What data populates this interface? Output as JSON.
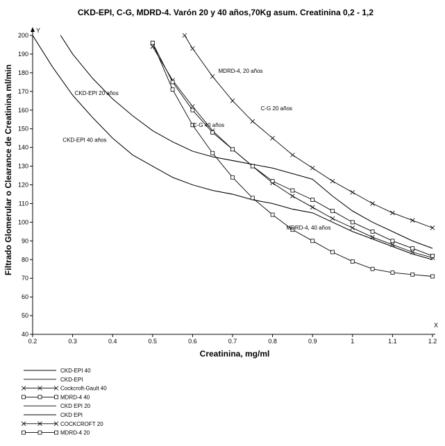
{
  "chart_data": {
    "type": "line",
    "title": "CKD-EPI, C-G, MDRD-4.  Varón 20 y 40 años,70Kg asum. Creatinina 0,2 - 1,2",
    "xlabel": "Creatinina, mg/ml",
    "ylabel": "Filtrado Glomerular o Clearance de Creatinina ml/min",
    "x_axis_letter": "X",
    "y_axis_letter": "Y",
    "xlim": [
      0.2,
      1.2
    ],
    "ylim": [
      40,
      200
    ],
    "x_ticks": [
      "0.2",
      "0.3",
      "0.4",
      "0.5",
      "0.6",
      "0.7",
      "0.8",
      "0.9",
      "1",
      "1.1",
      "1.2"
    ],
    "y_ticks": [
      "40",
      "50",
      "60",
      "70",
      "80",
      "90",
      "100",
      "110",
      "120",
      "130",
      "140",
      "150",
      "160",
      "170",
      "180",
      "190",
      "200"
    ],
    "grid": false,
    "legend_position": "bottom-left",
    "series": [
      {
        "name": "CKD-EPI 40",
        "marker": "none",
        "color": "#000000",
        "x": [
          0.2,
          0.25,
          0.3,
          0.35,
          0.4,
          0.45,
          0.5,
          0.55,
          0.6,
          0.65,
          0.7,
          0.75,
          0.8,
          0.85,
          0.9,
          0.95,
          1.0,
          1.05,
          1.1,
          1.15,
          1.2
        ],
        "y": [
          200,
          183,
          168,
          156,
          145,
          136,
          130,
          124,
          120,
          117,
          115,
          112,
          110,
          107,
          105,
          100,
          95,
          91,
          87,
          83,
          80
        ]
      },
      {
        "name": "CKD-EPI",
        "marker": "none",
        "color": "#000000",
        "x": [
          0.2,
          0.25,
          0.3,
          0.35,
          0.4,
          0.45,
          0.5,
          0.55,
          0.6,
          0.65,
          0.7,
          0.75,
          0.8,
          0.85,
          0.9,
          0.95,
          1.0,
          1.05,
          1.1,
          1.15,
          1.2
        ],
        "y": [
          200,
          183,
          168,
          156,
          145,
          136,
          130,
          124,
          120,
          117,
          115,
          112,
          110,
          107,
          105,
          100,
          95,
          91,
          87,
          83,
          80
        ]
      },
      {
        "name": "Cockcroft-Gault 40",
        "marker": "x",
        "color": "#000000",
        "x": [
          0.5,
          0.55,
          0.6,
          0.65,
          0.7,
          0.75,
          0.8,
          0.85,
          0.9,
          0.95,
          1.0,
          1.05,
          1.1,
          1.15,
          1.2
        ],
        "y": [
          194,
          176,
          162,
          149,
          139,
          130,
          121,
          114,
          108,
          102,
          97,
          92,
          88,
          84,
          81
        ]
      },
      {
        "name": "MDRD-4  40",
        "marker": "square",
        "color": "#000000",
        "x": [
          0.5,
          0.55,
          0.6,
          0.65,
          0.7,
          0.75,
          0.8,
          0.85,
          0.9,
          0.95,
          1.0,
          1.05,
          1.1,
          1.15,
          1.2
        ],
        "y": [
          196,
          171,
          152,
          137,
          124,
          113,
          104,
          96,
          90,
          84,
          79,
          75,
          73,
          72,
          71
        ]
      },
      {
        "name": "CKD EPI 20",
        "marker": "none",
        "color": "#000000",
        "x": [
          0.27,
          0.3,
          0.35,
          0.4,
          0.45,
          0.5,
          0.55,
          0.6,
          0.65,
          0.7,
          0.75,
          0.8,
          0.85,
          0.9,
          0.95,
          1.0,
          1.05,
          1.1,
          1.15,
          1.2
        ],
        "y": [
          200,
          190,
          177,
          166,
          157,
          149,
          143,
          138,
          135,
          133,
          131,
          129,
          126,
          123,
          114,
          106,
          100,
          95,
          90,
          86
        ]
      },
      {
        "name": "CKD EPI",
        "marker": "none",
        "color": "#000000",
        "x": [
          0.27,
          0.3,
          0.35,
          0.4,
          0.45,
          0.5,
          0.55,
          0.6,
          0.65,
          0.7,
          0.75,
          0.8,
          0.85,
          0.9,
          0.95,
          1.0,
          1.05,
          1.1,
          1.15,
          1.2
        ],
        "y": [
          200,
          190,
          177,
          166,
          157,
          149,
          143,
          138,
          135,
          133,
          131,
          129,
          126,
          123,
          114,
          106,
          100,
          95,
          90,
          86
        ]
      },
      {
        "name": "COCKCROFT 20",
        "marker": "x",
        "color": "#000000",
        "x": [
          0.58,
          0.6,
          0.65,
          0.7,
          0.75,
          0.8,
          0.85,
          0.9,
          0.95,
          1.0,
          1.05,
          1.1,
          1.15,
          1.2
        ],
        "y": [
          200,
          193,
          178,
          165,
          154,
          145,
          136,
          129,
          122,
          116,
          110,
          105,
          101,
          97
        ]
      },
      {
        "name": "MDRD-4 20",
        "marker": "square",
        "color": "#000000",
        "x": [
          0.5,
          0.55,
          0.6,
          0.65,
          0.7,
          0.75,
          0.8,
          0.85,
          0.9,
          0.95,
          1.0,
          1.05,
          1.1,
          1.15,
          1.2
        ],
        "y": [
          196,
          175,
          160,
          148,
          139,
          130,
          122,
          117,
          112,
          106,
          100,
          95,
          90,
          86,
          82
        ]
      }
    ],
    "annotations": [
      {
        "text": "CKD-EPI 20 años",
        "x": 0.36,
        "y": 168
      },
      {
        "text": "CKD-EPI 40 años",
        "x": 0.33,
        "y": 143
      },
      {
        "text": "MDRD-4, 20 años",
        "x": 0.72,
        "y": 180
      },
      {
        "text": "C-G 20 años",
        "x": 0.81,
        "y": 160
      },
      {
        "text": "C-G 40 años",
        "x": 0.64,
        "y": 151
      },
      {
        "text": "MDRD-4, 40 años",
        "x": 0.89,
        "y": 96
      }
    ]
  }
}
